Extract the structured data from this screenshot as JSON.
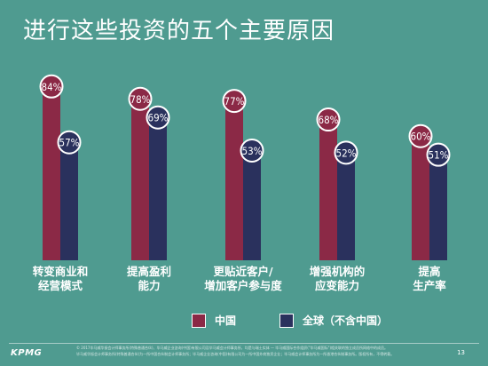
{
  "title": "进行这些投资的五个主要原因",
  "colors": {
    "background": "#4f9b90",
    "china": "#8b2946",
    "global": "#2a315d"
  },
  "legend": {
    "china": "中国",
    "global": "全球（不含中国）"
  },
  "chart_data": {
    "type": "bar",
    "categories": [
      [
        "转变商业和",
        "经营模式"
      ],
      [
        "提高盈利",
        "能力"
      ],
      [
        "更贴近客户/",
        "增加客户参与度"
      ],
      [
        "增强机构的",
        "应变能力"
      ],
      [
        "提高",
        "生产率"
      ]
    ],
    "series": [
      {
        "name": "中国",
        "values": [
          84,
          78,
          77,
          68,
          60
        ],
        "labels": [
          "84%",
          "78%",
          "77%",
          "68%",
          "60%"
        ]
      },
      {
        "name": "全球（不含中国）",
        "values": [
          57,
          69,
          53,
          52,
          51
        ],
        "labels": [
          "57%",
          "69%",
          "53%",
          "52%",
          "51%"
        ]
      }
    ],
    "ylim": [
      0,
      100
    ]
  },
  "footer": {
    "logo": "KPMG",
    "disclaimer_1": "© 2017毕马威华振会计师事务所(特殊普通合伙)、毕马威企业咨询(中国)有限公司及毕马威会计师事务所，均是与瑞士实体 — 毕马威国际合作组织(\"毕马威国际\")相关联的独立成员所网络中的成员。",
    "disclaimer_2": "毕马威华振会计师事务所(特殊普通合伙)为一所中国合伙制会计师事务所；毕马威企业咨询(中国)有限公司为一所中国外商独资企业；毕马威会计师事务所为一所香港合伙制事务所。版权所有，不得转载。",
    "page": "13"
  }
}
